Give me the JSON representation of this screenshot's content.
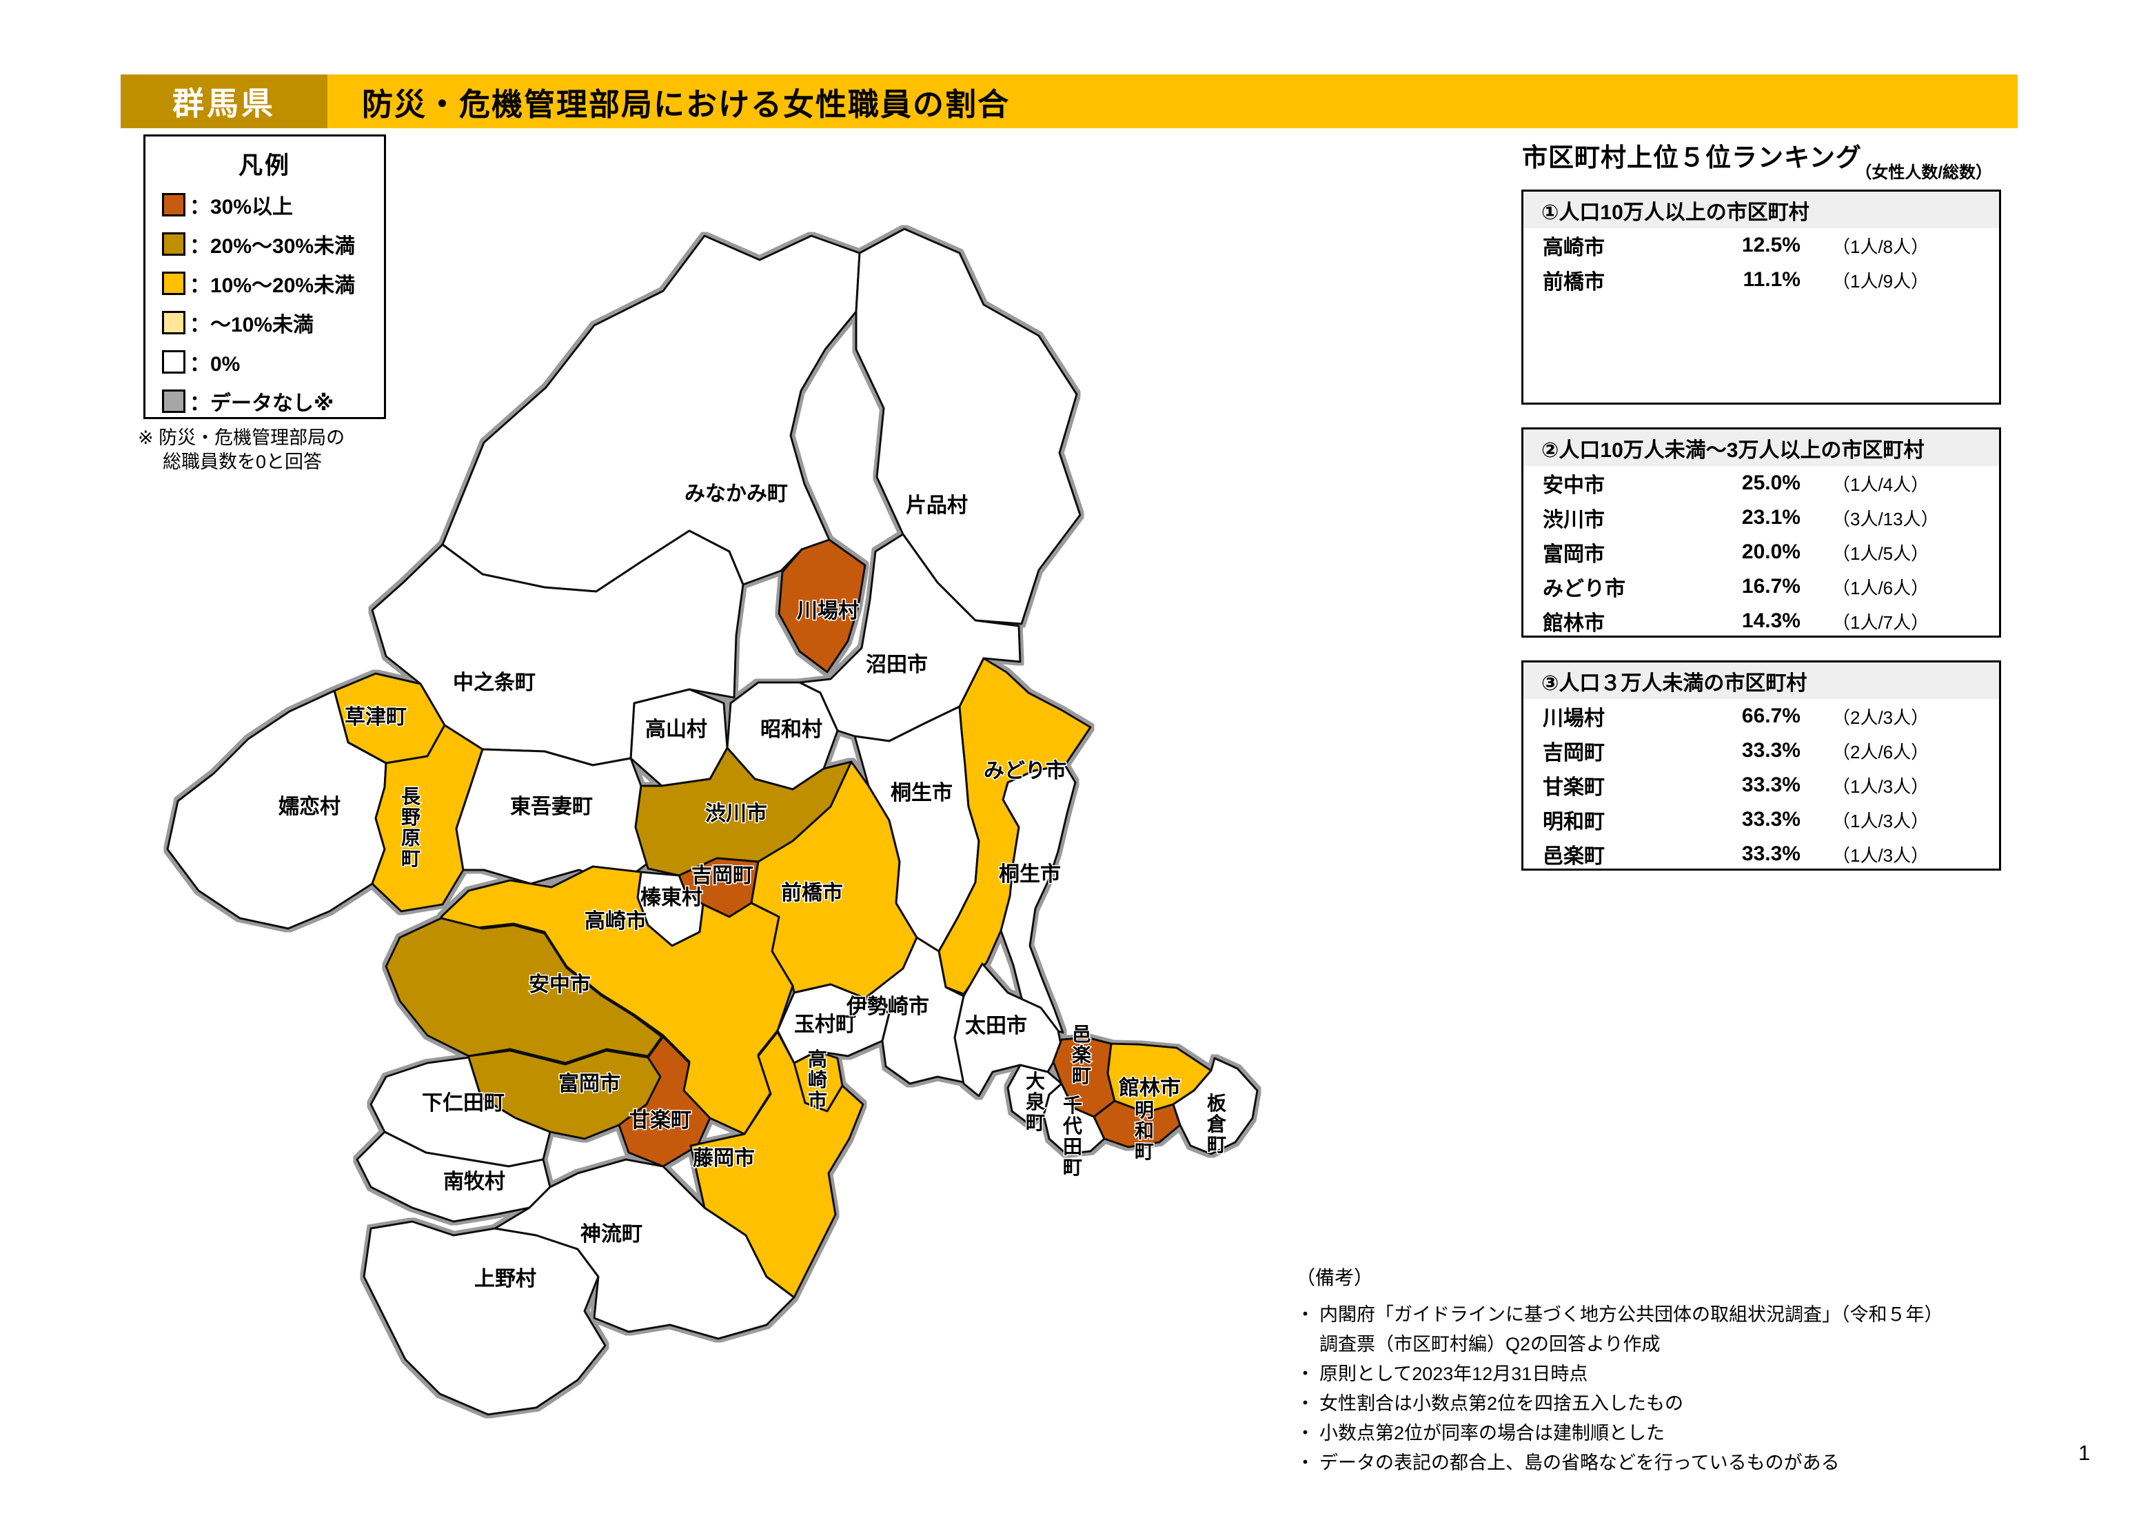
{
  "header": {
    "prefecture": "群馬県",
    "title": "防災・危機管理部局における女性職員の割合"
  },
  "legend": {
    "title": "凡例",
    "items": [
      {
        "label": "：30%以上",
        "category": "over30"
      },
      {
        "label": "：20%～30%未満",
        "category": "p20to30"
      },
      {
        "label": "：10%～20%未満",
        "category": "p10to20"
      },
      {
        "label": "：～10%未満",
        "category": "under10"
      },
      {
        "label": "：0%",
        "category": "zero"
      },
      {
        "label": "：データなし※",
        "category": "nodata"
      }
    ],
    "note_lines": [
      "※ 防災・危機管理部局の",
      "総職員数を0と回答"
    ]
  },
  "category_colors": {
    "over30": "#C55A11",
    "p20to30": "#BF8F00",
    "p10to20": "#FFC000",
    "under10": "#FFE699",
    "zero": "#FFFFFF",
    "nodata": "#A6A6A6"
  },
  "ranking": {
    "title": "市区町村上位５位ランキング",
    "unit_note": "（女性人数/総数）",
    "tables": [
      {
        "header": "①人口10万人以上の市区町村",
        "rows": [
          {
            "name": "高崎市",
            "pct": "12.5%",
            "fraction": "（1人/8人）"
          },
          {
            "name": "前橋市",
            "pct": "11.1%",
            "fraction": "（1人/9人）"
          }
        ]
      },
      {
        "header": "②人口10万人未満～3万人以上の市区町村",
        "rows": [
          {
            "name": "安中市",
            "pct": "25.0%",
            "fraction": "（1人/4人）"
          },
          {
            "name": "渋川市",
            "pct": "23.1%",
            "fraction": "（3人/13人）"
          },
          {
            "name": "富岡市",
            "pct": "20.0%",
            "fraction": "（1人/5人）"
          },
          {
            "name": "みどり市",
            "pct": "16.7%",
            "fraction": "（1人/6人）"
          },
          {
            "name": "館林市",
            "pct": "14.3%",
            "fraction": "（1人/7人）"
          }
        ]
      },
      {
        "header": "③人口３万人未満の市区町村",
        "rows": [
          {
            "name": "川場村",
            "pct": "66.7%",
            "fraction": "（2人/3人）"
          },
          {
            "name": "吉岡町",
            "pct": "33.3%",
            "fraction": "（2人/6人）"
          },
          {
            "name": "甘楽町",
            "pct": "33.3%",
            "fraction": "（1人/3人）"
          },
          {
            "name": "明和町",
            "pct": "33.3%",
            "fraction": "（1人/3人）"
          },
          {
            "name": "邑楽町",
            "pct": "33.3%",
            "fraction": "（1人/3人）"
          }
        ]
      }
    ]
  },
  "map": {
    "regions": [
      {
        "id": "minakami",
        "name": "みなかみ町",
        "category": "zero"
      },
      {
        "id": "katashina",
        "name": "片品村",
        "category": "zero"
      },
      {
        "id": "kawaba",
        "name": "川場村",
        "category": "over30"
      },
      {
        "id": "numata",
        "name": "沼田市",
        "category": "zero"
      },
      {
        "id": "showa",
        "name": "昭和村",
        "category": "zero"
      },
      {
        "id": "takayama",
        "name": "高山村",
        "category": "zero"
      },
      {
        "id": "nakanojo",
        "name": "中之条町",
        "category": "zero"
      },
      {
        "id": "kusatsu",
        "name": "草津町",
        "category": "p10to20"
      },
      {
        "id": "tsumagoi",
        "name": "嬬恋村",
        "category": "zero"
      },
      {
        "id": "naganohara",
        "name": "長野原町",
        "category": "p10to20"
      },
      {
        "id": "higashiagatsuma",
        "name": "東吾妻町",
        "category": "zero"
      },
      {
        "id": "shibukawa",
        "name": "渋川市",
        "category": "p20to30"
      },
      {
        "id": "yoshioka",
        "name": "吉岡町",
        "category": "over30"
      },
      {
        "id": "shinto",
        "name": "榛東村",
        "category": "zero"
      },
      {
        "id": "maebashi",
        "name": "前橋市",
        "category": "p10to20"
      },
      {
        "id": "kiryu",
        "name": "桐生市",
        "category": "zero"
      },
      {
        "id": "midori",
        "name": "みどり市",
        "category": "p10to20"
      },
      {
        "id": "takasaki",
        "name": "高崎市",
        "category": "p10to20"
      },
      {
        "id": "annaka",
        "name": "安中市",
        "category": "p20to30"
      },
      {
        "id": "tomioka",
        "name": "富岡市",
        "category": "p20to30"
      },
      {
        "id": "kanra",
        "name": "甘楽町",
        "category": "over30"
      },
      {
        "id": "shimonita",
        "name": "下仁田町",
        "category": "zero"
      },
      {
        "id": "nanmoku",
        "name": "南牧村",
        "category": "zero"
      },
      {
        "id": "ueno",
        "name": "上野村",
        "category": "zero"
      },
      {
        "id": "kanna",
        "name": "神流町",
        "category": "zero"
      },
      {
        "id": "fujioka",
        "name": "藤岡市",
        "category": "p10to20"
      },
      {
        "id": "tamamura",
        "name": "玉村町",
        "category": "zero"
      },
      {
        "id": "isesaki",
        "name": "伊勢崎市",
        "category": "zero"
      },
      {
        "id": "ota",
        "name": "太田市",
        "category": "zero"
      },
      {
        "id": "oizumi",
        "name": "大泉町",
        "category": "zero"
      },
      {
        "id": "chiyoda",
        "name": "千代田町",
        "category": "zero"
      },
      {
        "id": "ora",
        "name": "邑楽町",
        "category": "over30"
      },
      {
        "id": "tatebayashi",
        "name": "館林市",
        "category": "p10to20"
      },
      {
        "id": "meiwa",
        "name": "明和町",
        "category": "over30"
      },
      {
        "id": "itakura",
        "name": "板倉町",
        "category": "zero"
      }
    ]
  },
  "notes": {
    "title": "（備考）",
    "lines": [
      {
        "bullet": true,
        "text": "内閣府「ガイドラインに基づく地方公共団体の取組状況調査」（令和５年）"
      },
      {
        "bullet": false,
        "text": "調査票（市区町村編）Q2の回答より作成"
      },
      {
        "bullet": true,
        "text": "原則として2023年12月31日時点"
      },
      {
        "bullet": true,
        "text": "女性割合は小数点第2位を四捨五入したもの"
      },
      {
        "bullet": true,
        "text": "小数点第2位が同率の場合は建制順とした"
      },
      {
        "bullet": true,
        "text": "データの表記の都合上、島の省略などを行っているものがある"
      }
    ]
  },
  "page_number": "1"
}
